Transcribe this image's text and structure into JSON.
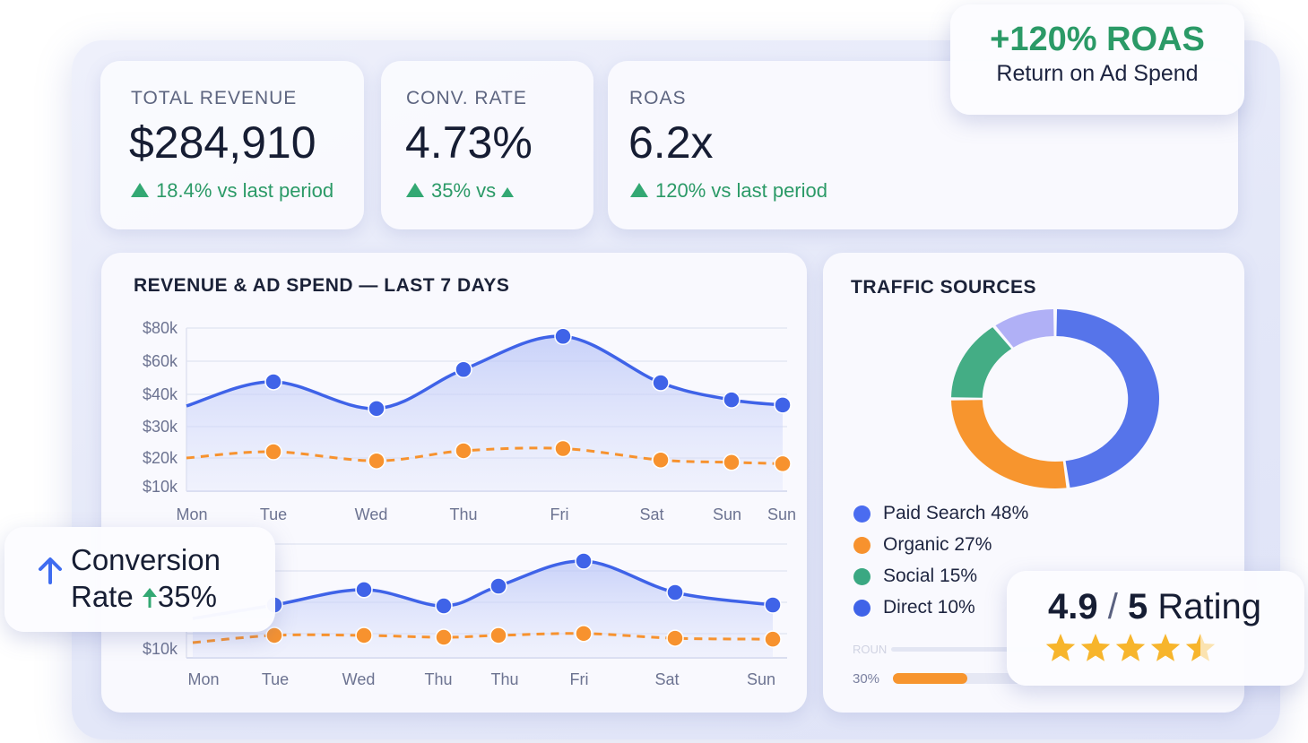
{
  "kpis": [
    {
      "label": "TOTAL REVENUE",
      "value": "$284,910",
      "delta": "18.4% vs last period"
    },
    {
      "label": "CONV. RATE",
      "value": "4.73%",
      "delta": "35% vs"
    },
    {
      "label": "ROAS",
      "value": "6.2x",
      "delta": "120% vs last period"
    }
  ],
  "roas_callout": {
    "headline": "+120% ROAS",
    "subtitle": "Return on Ad Spend"
  },
  "conversion_callout": {
    "line1": "Conversion",
    "line2_label": "Rate",
    "line2_value": "35%"
  },
  "rating_callout": {
    "score": "4.9",
    "separator": "/",
    "max": "5",
    "label": "Rating",
    "stars": 4.5,
    "star_color": "#f7b52c"
  },
  "traffic": {
    "title": "TRAFFIC SOURCES",
    "legend": [
      {
        "label": "Paid Search 48%",
        "color": "#4a6cf0"
      },
      {
        "label": "Organic 27%",
        "color": "#f7922e"
      },
      {
        "label": "Social 15%",
        "color": "#3aa882"
      },
      {
        "label": "Direct 10%",
        "color": "#3f63e8"
      }
    ],
    "progress": [
      {
        "label": "ROUN",
        "fraction": 0
      },
      {
        "label": "30%",
        "fraction": 0.3,
        "color": "#f7922e"
      }
    ]
  },
  "colors": {
    "revenue": "#3f63e8",
    "ad_spend": "#f7922e",
    "positive": "#2b9a67"
  },
  "chart_data": [
    {
      "type": "line",
      "title": "REVENUE & AD SPEND — LAST 7 DAYS",
      "categories": [
        "Mon",
        "Tue",
        "Wed",
        "Thu",
        "Fri",
        "Sat",
        "Sun",
        "Sun"
      ],
      "y_tick_labels": [
        "$80k",
        "$60k",
        "$40k",
        "$30k",
        "$20k",
        "$10k"
      ],
      "y_ticks": [
        80,
        60,
        40,
        30,
        20,
        10
      ],
      "ylim": [
        10,
        80
      ],
      "grid": true,
      "series": [
        {
          "values": [
            36.4,
            47.6,
            35.6,
            55,
            75,
            47,
            38.3,
            36.7
          ],
          "color": "#3f63e8",
          "style": "solid-area"
        },
        {
          "values": [
            20,
            22,
            19,
            22.3,
            23,
            19.3,
            18.5,
            18
          ],
          "color": "#f7922e",
          "style": "dashed"
        }
      ]
    },
    {
      "type": "line",
      "categories": [
        "Mon",
        "Tue",
        "Wed",
        "Thu",
        "Thu",
        "Fri",
        "Sat",
        "Sun"
      ],
      "y_tick_labels": [
        "$10k"
      ],
      "y_ticks": [
        10
      ],
      "grid": true,
      "series": [
        {
          "values": [
            19.7,
            24,
            28.9,
            23.7,
            30,
            38,
            28,
            24
          ],
          "color": "#3f63e8",
          "style": "solid-area"
        },
        {
          "values": [
            12,
            14.3,
            14.3,
            13.7,
            14.3,
            14.9,
            13.4,
            13.1
          ],
          "color": "#f7922e",
          "style": "dashed"
        }
      ]
    },
    {
      "type": "pie",
      "title": "TRAFFIC SOURCES",
      "categories": [
        "Paid Search",
        "Organic",
        "Social",
        "Direct"
      ],
      "values": [
        48,
        27,
        15,
        10
      ],
      "colors": [
        "#5674ea",
        "#f7952e",
        "#44ad85",
        "#b0b0f6"
      ],
      "donut": true
    }
  ]
}
